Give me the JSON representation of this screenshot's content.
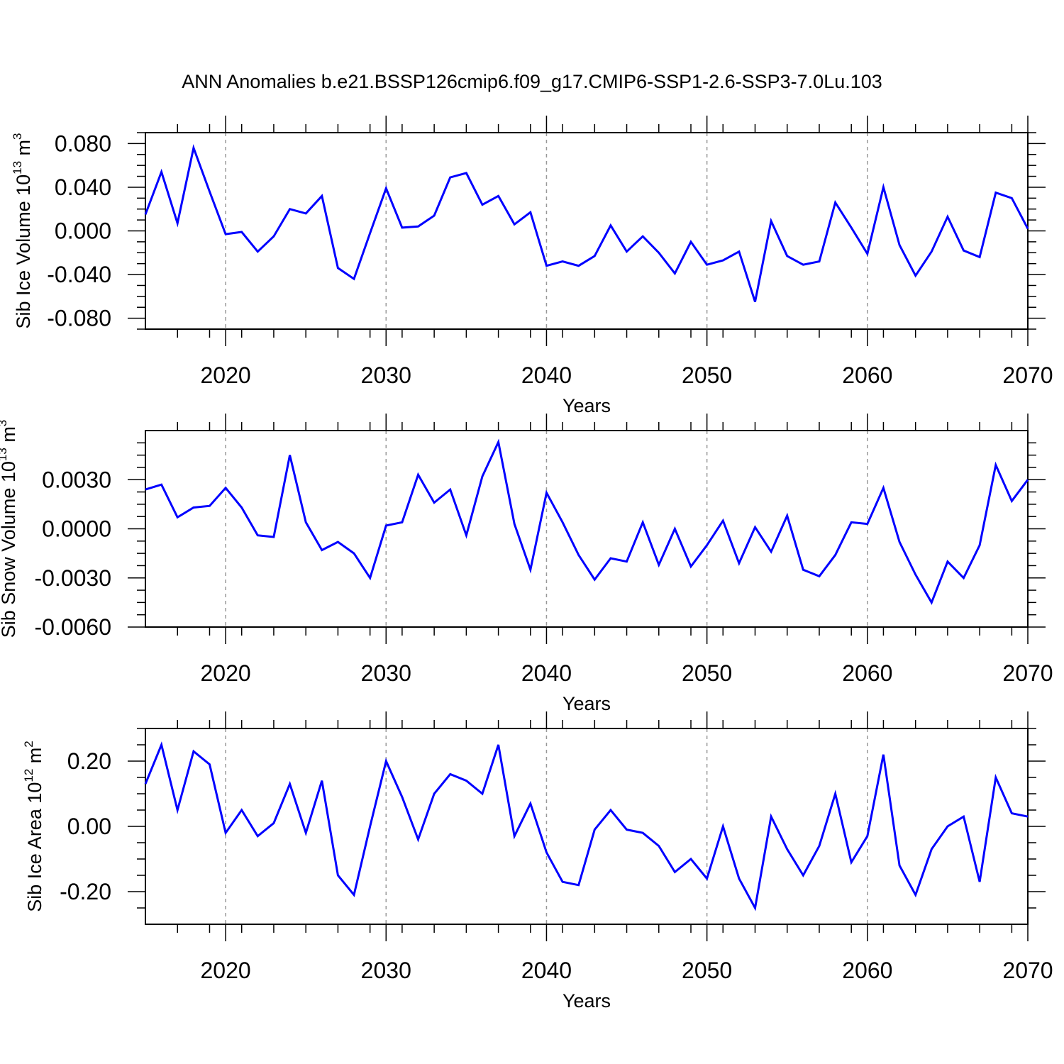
{
  "chart_data": {
    "title": "ANN Anomalies b.e21.BSSP126cmip6.f09_g17.CMIP6-SSP1-2.6-SSP3-7.0Lu.103",
    "type": "line",
    "line_color": "#0000ff",
    "x": [
      2015,
      2016,
      2017,
      2018,
      2019,
      2020,
      2021,
      2022,
      2023,
      2024,
      2025,
      2026,
      2027,
      2028,
      2029,
      2030,
      2031,
      2032,
      2033,
      2034,
      2035,
      2036,
      2037,
      2038,
      2039,
      2040,
      2041,
      2042,
      2043,
      2044,
      2045,
      2046,
      2047,
      2048,
      2049,
      2050,
      2051,
      2052,
      2053,
      2054,
      2055,
      2056,
      2057,
      2058,
      2059,
      2060,
      2061,
      2062,
      2063,
      2064,
      2065,
      2066,
      2067,
      2068,
      2069,
      2070
    ],
    "xlim": [
      2015,
      2070
    ],
    "x_ticks": [
      "2020",
      "2030",
      "2040",
      "2050",
      "2060",
      "2070"
    ],
    "xlabel": "Years",
    "panels": [
      {
        "ylabel": "Sib Ice Volume 10",
        "ylabel_exp": "13",
        "ylabel_unit": " m",
        "ylabel_unit_exp": "3",
        "ylim": [
          -0.09,
          0.09
        ],
        "y_ticks": [
          "0.080",
          "0.040",
          "0.000",
          "-0.040",
          "-0.080"
        ],
        "y_tick_values": [
          0.08,
          0.04,
          0.0,
          -0.04,
          -0.08
        ],
        "values": [
          0.015,
          0.054,
          0.007,
          0.076,
          0.036,
          -0.003,
          -0.001,
          -0.019,
          -0.005,
          0.02,
          0.016,
          0.032,
          -0.034,
          -0.044,
          -0.002,
          0.039,
          0.003,
          0.004,
          0.014,
          0.049,
          0.053,
          0.024,
          0.032,
          0.006,
          0.017,
          -0.032,
          -0.028,
          -0.032,
          -0.023,
          0.005,
          -0.019,
          -0.005,
          -0.02,
          -0.039,
          -0.01,
          -0.031,
          -0.027,
          -0.019,
          -0.065,
          0.009,
          -0.023,
          -0.031,
          -0.028,
          0.026,
          0.003,
          -0.021,
          0.04,
          -0.013,
          -0.041,
          -0.019,
          0.013,
          -0.018,
          -0.024,
          0.035,
          0.03,
          0.002
        ]
      },
      {
        "ylabel": "Sib Snow Volume 10",
        "ylabel_exp": "13",
        "ylabel_unit": " m",
        "ylabel_unit_exp": "3",
        "ylim": [
          -0.006,
          0.006
        ],
        "y_ticks": [
          "0.0030",
          "0.0000",
          "-0.0030",
          "-0.0060"
        ],
        "y_tick_values": [
          0.003,
          0.0,
          -0.003,
          -0.006
        ],
        "values": [
          0.0024,
          0.0027,
          0.0007,
          0.0013,
          0.0014,
          0.0025,
          0.0013,
          -0.0004,
          -0.0005,
          0.0045,
          0.0004,
          -0.0013,
          -0.0008,
          -0.0015,
          -0.003,
          0.0002,
          0.0004,
          0.0033,
          0.0016,
          0.0024,
          -0.0004,
          0.0032,
          0.0053,
          0.0003,
          -0.0025,
          0.0022,
          0.0004,
          -0.0016,
          -0.0031,
          -0.0018,
          -0.002,
          0.0004,
          -0.0022,
          0.0,
          -0.0023,
          -0.001,
          0.0005,
          -0.0021,
          0.0001,
          -0.0014,
          0.0008,
          -0.0025,
          -0.0029,
          -0.0016,
          0.0004,
          0.0003,
          0.0025,
          -0.0008,
          -0.0028,
          -0.0045,
          -0.002,
          -0.003,
          -0.001,
          0.0039,
          0.0017,
          0.003
        ]
      },
      {
        "ylabel": "Sib Ice Area 10",
        "ylabel_exp": "12",
        "ylabel_unit": " m",
        "ylabel_unit_exp": "2",
        "ylim": [
          -0.3,
          0.3
        ],
        "y_ticks": [
          "0.20",
          "0.00",
          "-0.20"
        ],
        "y_tick_values": [
          0.2,
          0.0,
          -0.2
        ],
        "values": [
          0.13,
          0.25,
          0.05,
          0.23,
          0.19,
          -0.02,
          0.05,
          -0.03,
          0.01,
          0.13,
          -0.02,
          0.14,
          -0.15,
          -0.21,
          0.0,
          0.2,
          0.09,
          -0.04,
          0.1,
          0.16,
          0.14,
          0.1,
          0.25,
          -0.03,
          0.07,
          -0.08,
          -0.17,
          -0.18,
          -0.01,
          0.05,
          -0.01,
          -0.02,
          -0.06,
          -0.14,
          -0.1,
          -0.16,
          0.0,
          -0.16,
          -0.25,
          0.03,
          -0.07,
          -0.15,
          -0.06,
          0.1,
          -0.11,
          -0.03,
          0.22,
          -0.12,
          -0.21,
          -0.07,
          0.0,
          0.03,
          -0.17,
          0.15,
          0.04,
          0.03
        ]
      }
    ]
  }
}
